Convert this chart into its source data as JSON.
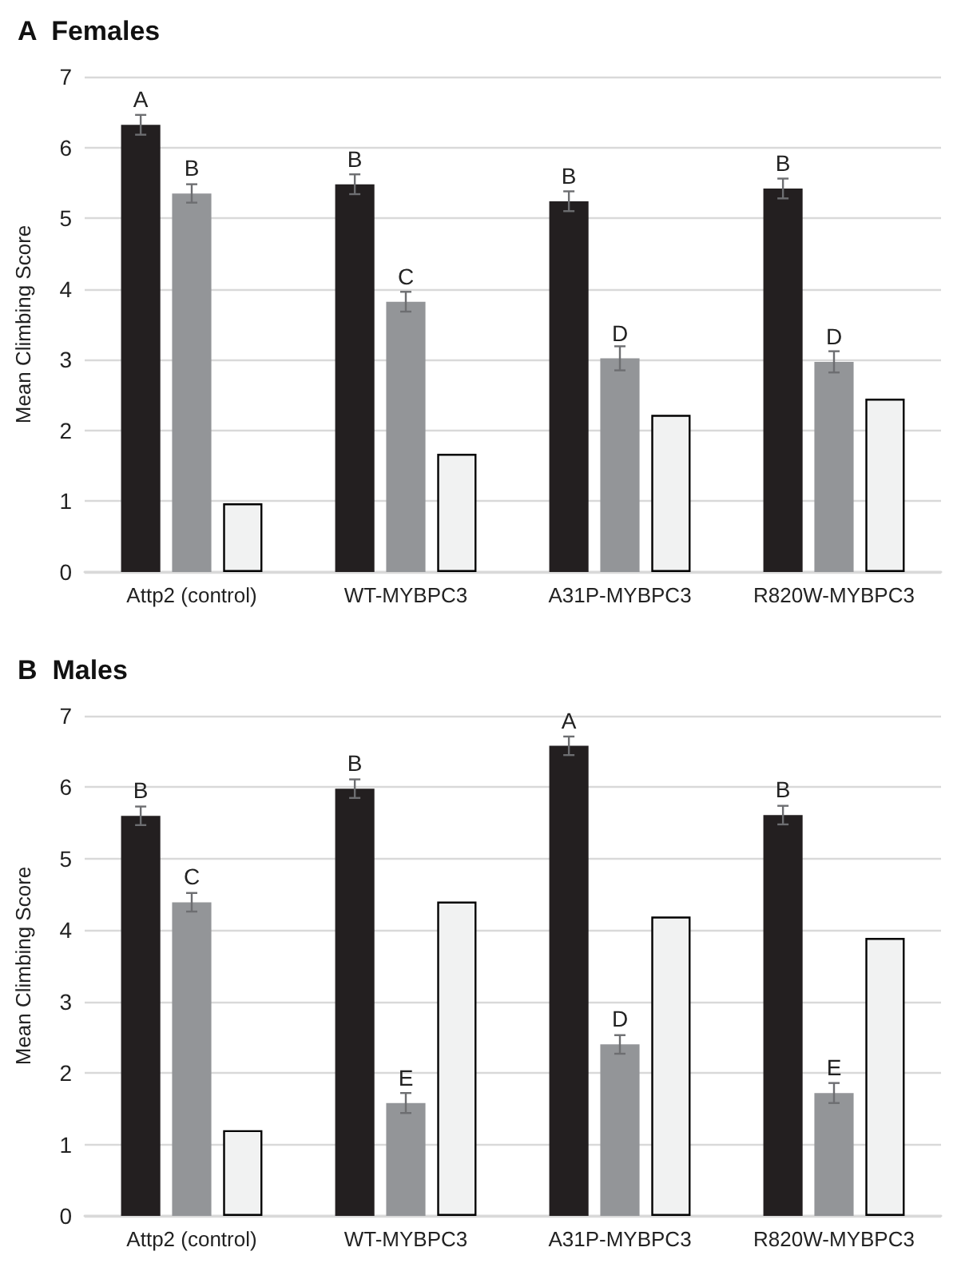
{
  "chart_data": [
    {
      "type": "bar",
      "title": "A  Females",
      "ylabel": "Mean Climbing Score",
      "categories": [
        "Attp2 (control)",
        "WT-MYBPC3",
        "A31P-MYBPC3",
        "R820W-MYBPC3"
      ],
      "series": [
        {
          "color": "#231f20",
          "values": [
            6.32,
            5.48,
            5.24,
            5.42
          ],
          "errors": [
            0.14,
            0.14,
            0.14,
            0.14
          ],
          "value_labels": [
            "A",
            "B",
            "B",
            "B"
          ]
        },
        {
          "color": "#939598",
          "values": [
            5.35,
            3.82,
            3.02,
            2.97
          ],
          "errors": [
            0.13,
            0.14,
            0.17,
            0.15
          ],
          "value_labels": [
            "B",
            "C",
            "D",
            "D"
          ]
        },
        {
          "color": "#f1f2f2",
          "values": [
            0.97,
            1.67,
            2.22,
            2.45
          ]
        }
      ],
      "ylim": [
        0,
        7
      ],
      "yticks": [
        0,
        1,
        2,
        3,
        4,
        5,
        6,
        7
      ],
      "grid": "y"
    },
    {
      "type": "bar",
      "title": "B  Males",
      "ylabel": "Mean Climbing Score",
      "categories": [
        "Attp2 (control)",
        "WT-MYBPC3",
        "A31P-MYBPC3",
        "R820W-MYBPC3"
      ],
      "series": [
        {
          "color": "#231f20",
          "values": [
            5.6,
            5.98,
            6.58,
            5.61
          ],
          "errors": [
            0.13,
            0.13,
            0.13,
            0.13
          ],
          "value_labels": [
            "B",
            "B",
            "A",
            "B"
          ]
        },
        {
          "color": "#939598",
          "values": [
            4.39,
            1.58,
            2.4,
            1.72
          ],
          "errors": [
            0.13,
            0.14,
            0.13,
            0.14
          ],
          "value_labels": [
            "C",
            "E",
            "D",
            "E"
          ]
        },
        {
          "color": "#f1f2f2",
          "values": [
            1.2,
            4.4,
            4.19,
            3.89
          ]
        }
      ],
      "ylim": [
        0,
        7
      ],
      "yticks": [
        0,
        1,
        2,
        3,
        4,
        5,
        6,
        7
      ],
      "grid": "y"
    }
  ]
}
